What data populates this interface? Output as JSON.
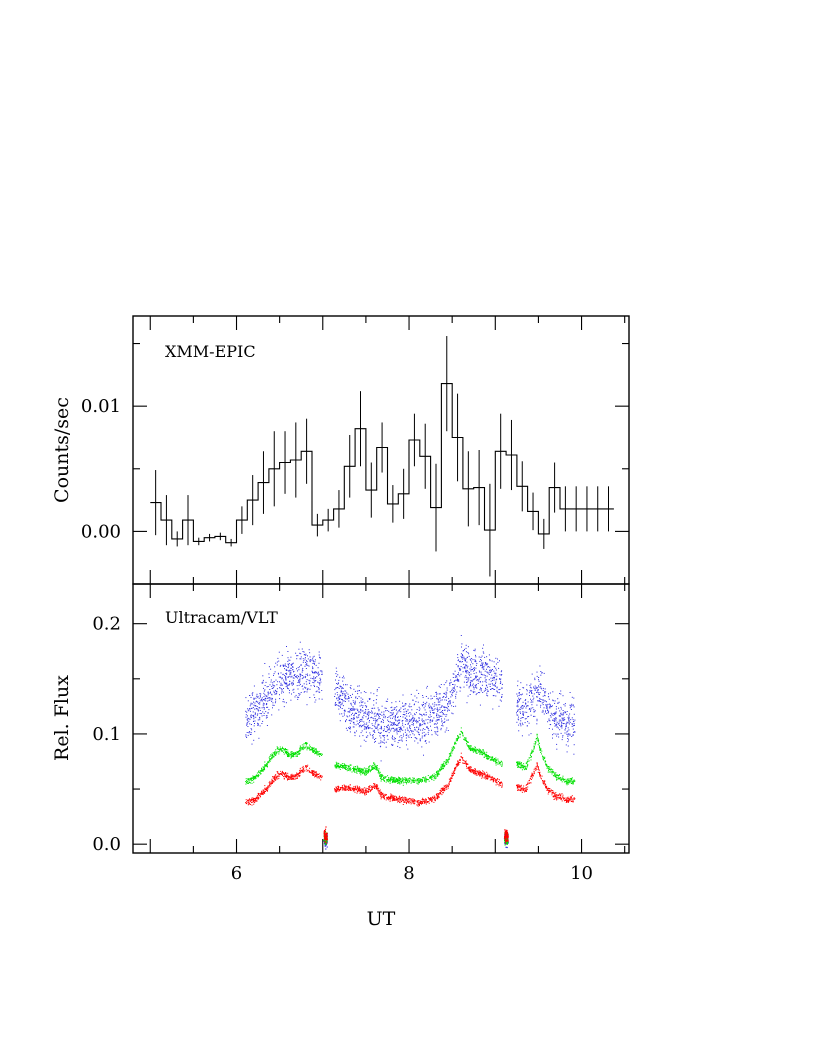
{
  "chart_data": [
    {
      "type": "line",
      "panel": "top",
      "annotation": "XMM-EPIC",
      "ylabel": "Counts/sec",
      "xlabel": "",
      "xlim": [
        4.8,
        10.55
      ],
      "ylim": [
        -0.0042,
        0.0172
      ],
      "yticks_major": [
        0.0,
        0.01
      ],
      "ytick_labels": [
        "0.00",
        "0.01"
      ],
      "style": "step histogram with error bars",
      "bin_width": 0.125,
      "series": [
        {
          "x": [
            5.0625,
            5.1875,
            5.3125,
            5.4375,
            5.5625,
            5.6875,
            5.8125,
            5.9375,
            6.0625,
            6.1875,
            6.3125,
            6.4375,
            6.5625,
            6.6875,
            6.8125,
            6.9375,
            7.0625,
            7.1875,
            7.3125,
            7.4375,
            7.5625,
            7.6875,
            7.8125,
            7.9375,
            8.0625,
            8.1875,
            8.3125,
            8.4375,
            8.5625,
            8.6875,
            8.8125,
            8.9375,
            9.0625,
            9.1875,
            9.3125,
            9.4375,
            9.5625,
            9.6875,
            9.8125,
            9.9375,
            10.0625,
            10.1875,
            10.3125
          ],
          "y": [
            0.0023,
            0.0009,
            -0.0006,
            0.0009,
            -0.0008,
            -0.0005,
            -0.0004,
            -0.0009,
            0.0009,
            0.0025,
            0.0039,
            0.005,
            0.0055,
            0.0057,
            0.0064,
            0.0005,
            0.0009,
            0.0018,
            0.0052,
            0.0082,
            0.0033,
            0.0067,
            0.0022,
            0.003,
            0.0073,
            0.006,
            0.0019,
            0.0118,
            0.0075,
            0.0034,
            0.0035,
            0.0001,
            0.0064,
            0.0061,
            0.0036,
            0.0016,
            -0.0002,
            0.0035,
            0.0018,
            0.0018,
            0.0018,
            0.0018,
            0.0018
          ],
          "yerr": [
            0.0026,
            0.002,
            0.0006,
            0.002,
            0.0003,
            0.0003,
            0.0003,
            0.0003,
            0.0011,
            0.002,
            0.0025,
            0.003,
            0.0025,
            0.003,
            0.0026,
            0.0009,
            0.0009,
            0.0015,
            0.0025,
            0.003,
            0.0022,
            0.002,
            0.0015,
            0.002,
            0.0021,
            0.0026,
            0.0035,
            0.0038,
            0.0035,
            0.003,
            0.003,
            0.0037,
            0.003,
            0.0028,
            0.002,
            0.0015,
            0.0012,
            0.002,
            0.0018,
            0.0018,
            0.0018,
            0.0018,
            0.0018
          ]
        }
      ]
    },
    {
      "type": "scatter",
      "panel": "bottom",
      "annotation": "Ultracam/VLT",
      "ylabel": "Rel. Flux",
      "xlabel": "UT",
      "xlim": [
        4.8,
        10.55
      ],
      "ylim": [
        -0.008,
        0.236
      ],
      "xticks_major": [
        6,
        8,
        10
      ],
      "xtick_labels": [
        "6",
        "8",
        "10"
      ],
      "yticks_major": [
        0.0,
        0.1,
        0.2
      ],
      "ytick_labels": [
        "0.0",
        "0.1",
        "0.2"
      ],
      "gaps_ut": [
        [
          6.99,
          7.13
        ],
        [
          9.08,
          9.24
        ]
      ],
      "series": [
        {
          "color": "#3030e0",
          "x": [
            6.1,
            6.2,
            6.3,
            6.4,
            6.5,
            6.6,
            6.7,
            6.8,
            6.9,
            6.98,
            7.14,
            7.3,
            7.5,
            7.7,
            7.9,
            8.1,
            8.3,
            8.45,
            8.55,
            8.6,
            8.7,
            8.8,
            8.9,
            9.0,
            9.07,
            9.25,
            9.35,
            9.45,
            9.52,
            9.6,
            9.7,
            9.8,
            9.92
          ],
          "y": [
            0.115,
            0.118,
            0.13,
            0.14,
            0.15,
            0.152,
            0.155,
            0.157,
            0.152,
            0.15,
            0.14,
            0.125,
            0.115,
            0.11,
            0.11,
            0.112,
            0.117,
            0.13,
            0.15,
            0.168,
            0.155,
            0.155,
            0.152,
            0.15,
            0.145,
            0.125,
            0.122,
            0.135,
            0.14,
            0.125,
            0.115,
            0.11,
            0.108
          ],
          "spread": 0.022
        },
        {
          "color": "#00e000",
          "x": [
            6.1,
            6.2,
            6.3,
            6.4,
            6.5,
            6.55,
            6.6,
            6.7,
            6.8,
            6.85,
            6.9,
            6.98,
            7.14,
            7.3,
            7.5,
            7.6,
            7.65,
            7.7,
            7.9,
            8.1,
            8.3,
            8.45,
            8.55,
            8.6,
            8.7,
            8.8,
            8.9,
            9.0,
            9.07,
            9.25,
            9.35,
            9.42,
            9.48,
            9.52,
            9.6,
            9.7,
            9.8,
            9.92
          ],
          "y": [
            0.057,
            0.06,
            0.068,
            0.08,
            0.087,
            0.085,
            0.081,
            0.083,
            0.091,
            0.087,
            0.085,
            0.082,
            0.072,
            0.07,
            0.066,
            0.072,
            0.064,
            0.06,
            0.058,
            0.058,
            0.062,
            0.078,
            0.095,
            0.103,
            0.087,
            0.085,
            0.08,
            0.076,
            0.074,
            0.073,
            0.07,
            0.083,
            0.098,
            0.085,
            0.07,
            0.062,
            0.058,
            0.057
          ],
          "spread": 0.003
        },
        {
          "color": "#ff0000",
          "x": [
            6.1,
            6.2,
            6.3,
            6.4,
            6.5,
            6.55,
            6.6,
            6.7,
            6.8,
            6.85,
            6.9,
            6.98,
            7.14,
            7.3,
            7.5,
            7.6,
            7.65,
            7.7,
            7.9,
            8.1,
            8.3,
            8.45,
            8.55,
            8.6,
            8.7,
            8.8,
            8.9,
            9.0,
            9.07,
            9.25,
            9.35,
            9.42,
            9.48,
            9.52,
            9.6,
            9.7,
            9.8,
            9.92
          ],
          "y": [
            0.038,
            0.04,
            0.047,
            0.057,
            0.065,
            0.063,
            0.06,
            0.063,
            0.07,
            0.066,
            0.064,
            0.062,
            0.05,
            0.052,
            0.048,
            0.054,
            0.048,
            0.044,
            0.041,
            0.038,
            0.042,
            0.055,
            0.072,
            0.08,
            0.068,
            0.065,
            0.062,
            0.058,
            0.055,
            0.052,
            0.05,
            0.062,
            0.072,
            0.062,
            0.05,
            0.044,
            0.041,
            0.041
          ],
          "spread": 0.003
        }
      ]
    }
  ]
}
